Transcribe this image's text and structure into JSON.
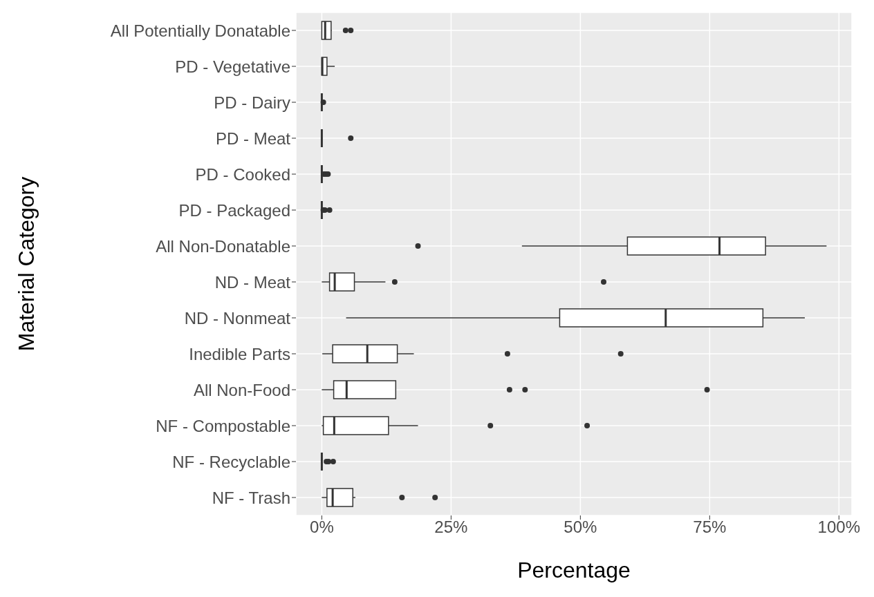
{
  "chart_data": {
    "type": "box",
    "orientation": "horizontal",
    "xlabel": "Percentage",
    "ylabel": "Material Category",
    "categories": [
      "All Potentially Donatable",
      "PD - Vegetative",
      "PD - Dairy",
      "PD - Meat",
      "PD - Cooked",
      "PD - Packaged",
      "All Non-Donatable",
      "ND - Meat",
      "ND - Nonmeat",
      "Inedible Parts",
      "All Non-Food",
      "NF - Compostable",
      "NF - Recyclable",
      "NF - Trash"
    ],
    "boxes": [
      {
        "low": 0,
        "q1": 0,
        "median": 0.65,
        "q3": 1.8,
        "high": 1.9,
        "outliers": [
          4.6,
          5.6
        ]
      },
      {
        "low": 0,
        "q1": 0,
        "median": 0.1,
        "q3": 1.0,
        "high": 2.5
      },
      {
        "low": 0,
        "q1": 0,
        "median": 0,
        "q3": 0,
        "high": 0,
        "outliers": [
          0.3
        ]
      },
      {
        "low": 0,
        "q1": 0,
        "median": 0,
        "q3": 0,
        "high": 0,
        "outliers": [
          5.6
        ]
      },
      {
        "low": 0,
        "q1": 0,
        "median": 0,
        "q3": 0,
        "high": 0,
        "outliers": [
          0.4,
          0.8,
          1.2
        ]
      },
      {
        "low": 0,
        "q1": 0,
        "median": 0,
        "q3": 0,
        "high": 0,
        "outliers": [
          0.3,
          0.6,
          1.5
        ]
      },
      {
        "low": 38.7,
        "q1": 59.1,
        "median": 76.9,
        "q3": 85.8,
        "high": 97.6,
        "outliers": [
          18.6
        ]
      },
      {
        "low": 0,
        "q1": 1.5,
        "median": 2.5,
        "q3": 6.3,
        "high": 12.3,
        "outliers": [
          14.1,
          54.5
        ]
      },
      {
        "low": 4.7,
        "q1": 46.0,
        "median": 66.5,
        "q3": 85.3,
        "high": 93.4
      },
      {
        "low": 0.1,
        "q1": 2.1,
        "median": 8.8,
        "q3": 14.6,
        "high": 17.8,
        "outliers": [
          35.9,
          57.8
        ]
      },
      {
        "low": 0,
        "q1": 2.3,
        "median": 4.8,
        "q3": 14.3,
        "high": 14.3,
        "outliers": [
          36.3,
          39.3,
          74.5
        ]
      },
      {
        "low": 0,
        "q1": 0.3,
        "median": 2.4,
        "q3": 12.9,
        "high": 18.6,
        "outliers": [
          32.6,
          51.3
        ]
      },
      {
        "low": 0,
        "q1": 0,
        "median": 0,
        "q3": 0,
        "high": 0,
        "outliers": [
          0.9,
          1.3,
          2.2
        ]
      },
      {
        "low": 0,
        "q1": 1.0,
        "median": 2.1,
        "q3": 6.0,
        "high": 6.5,
        "outliers": [
          15.5,
          21.9
        ]
      }
    ],
    "xlim": [
      -5,
      102.5
    ],
    "xticks": [
      {
        "value": 0,
        "label": "0%"
      },
      {
        "value": 25,
        "label": "25%"
      },
      {
        "value": 50,
        "label": "50%"
      },
      {
        "value": 75,
        "label": "75%"
      },
      {
        "value": 100,
        "label": "100%"
      }
    ],
    "grid": true
  }
}
